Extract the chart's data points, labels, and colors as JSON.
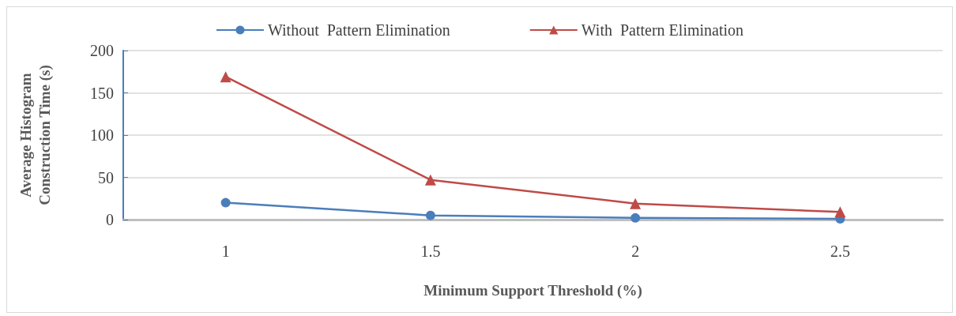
{
  "chart_data": {
    "type": "line",
    "xlabel": "Minimum Support Threshold (%)",
    "ylabel": "Average Histogram\nConstruction Time (s)",
    "categories": [
      "1",
      "1.5",
      "2",
      "2.5"
    ],
    "series": [
      {
        "name": "Without  Pattern Elimination",
        "color": "#4a7ebb",
        "marker": "circle",
        "values": [
          20,
          5,
          2,
          1
        ]
      },
      {
        "name": "With  Pattern Elimination",
        "color": "#be4b48",
        "marker": "triangle",
        "values": [
          169,
          47,
          19,
          9
        ]
      }
    ],
    "ylim": [
      0,
      200
    ],
    "yticks": [
      0,
      50,
      100,
      150,
      200
    ],
    "grid": "y",
    "legend": "top"
  }
}
